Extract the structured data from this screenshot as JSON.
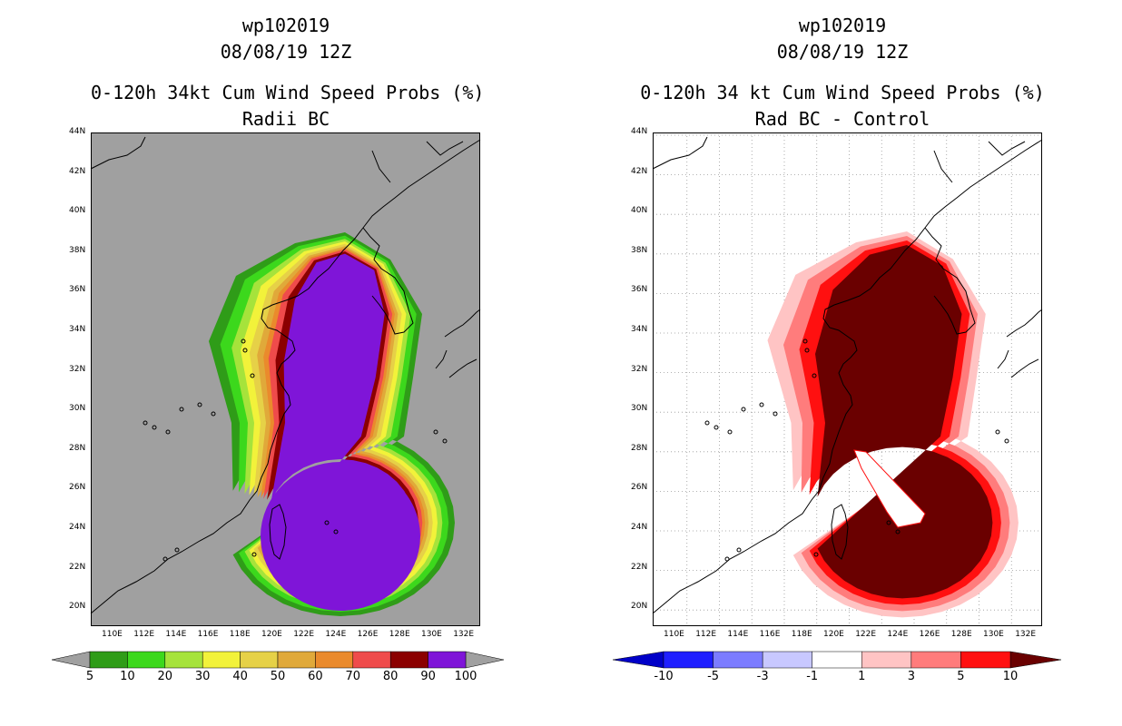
{
  "left_panel": {
    "title_line1": "wp102019",
    "title_line2": "08/08/19 12Z",
    "title_line3": "0-120h 34kt Cum Wind Speed Probs (%)",
    "title_line4": "Radii BC",
    "colorbar": {
      "labels": [
        "5",
        "10",
        "20",
        "30",
        "40",
        "50",
        "60",
        "70",
        "80",
        "90",
        "100"
      ],
      "colors": [
        "#2f9c18",
        "#3cd81c",
        "#a6e33b",
        "#f2f23a",
        "#e6d147",
        "#e0a93a",
        "#ea8a2c",
        "#ef4b4b",
        "#8b0000",
        "#7f15d8"
      ],
      "end_color": "#a0a0a0"
    }
  },
  "right_panel": {
    "title_line1": "wp102019",
    "title_line2": "08/08/19 12Z",
    "title_line3": "0-120h 34 kt Cum Wind Speed Probs (%)",
    "title_line4": "Rad BC - Control",
    "colorbar": {
      "labels": [
        "-10",
        "-5",
        "-3",
        "-1",
        "1",
        "3",
        "5",
        "10"
      ],
      "colors": [
        "#0000c8",
        "#1f1fff",
        "#7c7cff",
        "#c8c8ff",
        "#ffffff",
        "#ffc4c4",
        "#ff7c7c",
        "#ff1010",
        "#6a0000"
      ]
    }
  },
  "map_axes": {
    "lat_labels": [
      "44N",
      "42N",
      "40N",
      "38N",
      "36N",
      "34N",
      "32N",
      "30N",
      "28N",
      "26N",
      "24N",
      "22N",
      "20N"
    ],
    "lon_labels": [
      "110E",
      "112E",
      "114E",
      "116E",
      "118E",
      "120E",
      "122E",
      "124E",
      "126E",
      "128E",
      "130E",
      "132E"
    ]
  },
  "colors": {
    "left_background": "#a0a0a0",
    "right_background": "#ffffff",
    "coastline": "#000000"
  }
}
